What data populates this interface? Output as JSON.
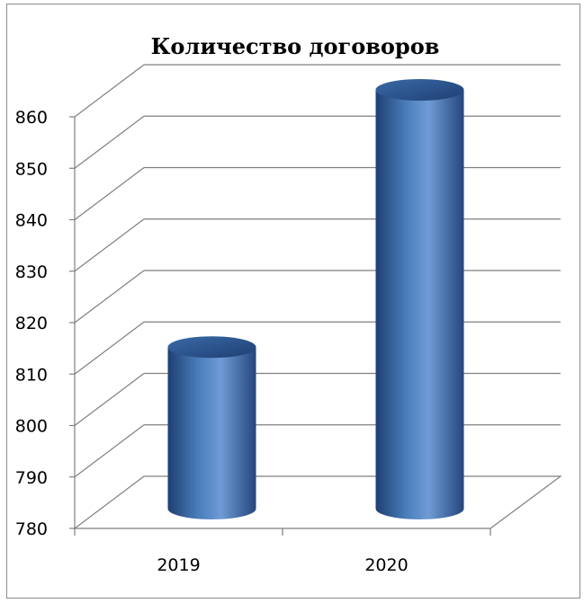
{
  "chart_data": {
    "type": "bar",
    "style": "3d-cylinder",
    "title": "Количество договоров",
    "categories": [
      "2019",
      "2020"
    ],
    "values": [
      810,
      860
    ],
    "ylim": [
      780,
      860
    ],
    "yticks": [
      "780",
      "790",
      "800",
      "810",
      "820",
      "830",
      "840",
      "850",
      "860"
    ],
    "grid": true,
    "legend": "none",
    "colors": {
      "bar": "#4a7ebb",
      "bar_dark": "#1f3f72",
      "bar_light": "#7fa8e0",
      "gridline": "#7f7f7f"
    }
  }
}
